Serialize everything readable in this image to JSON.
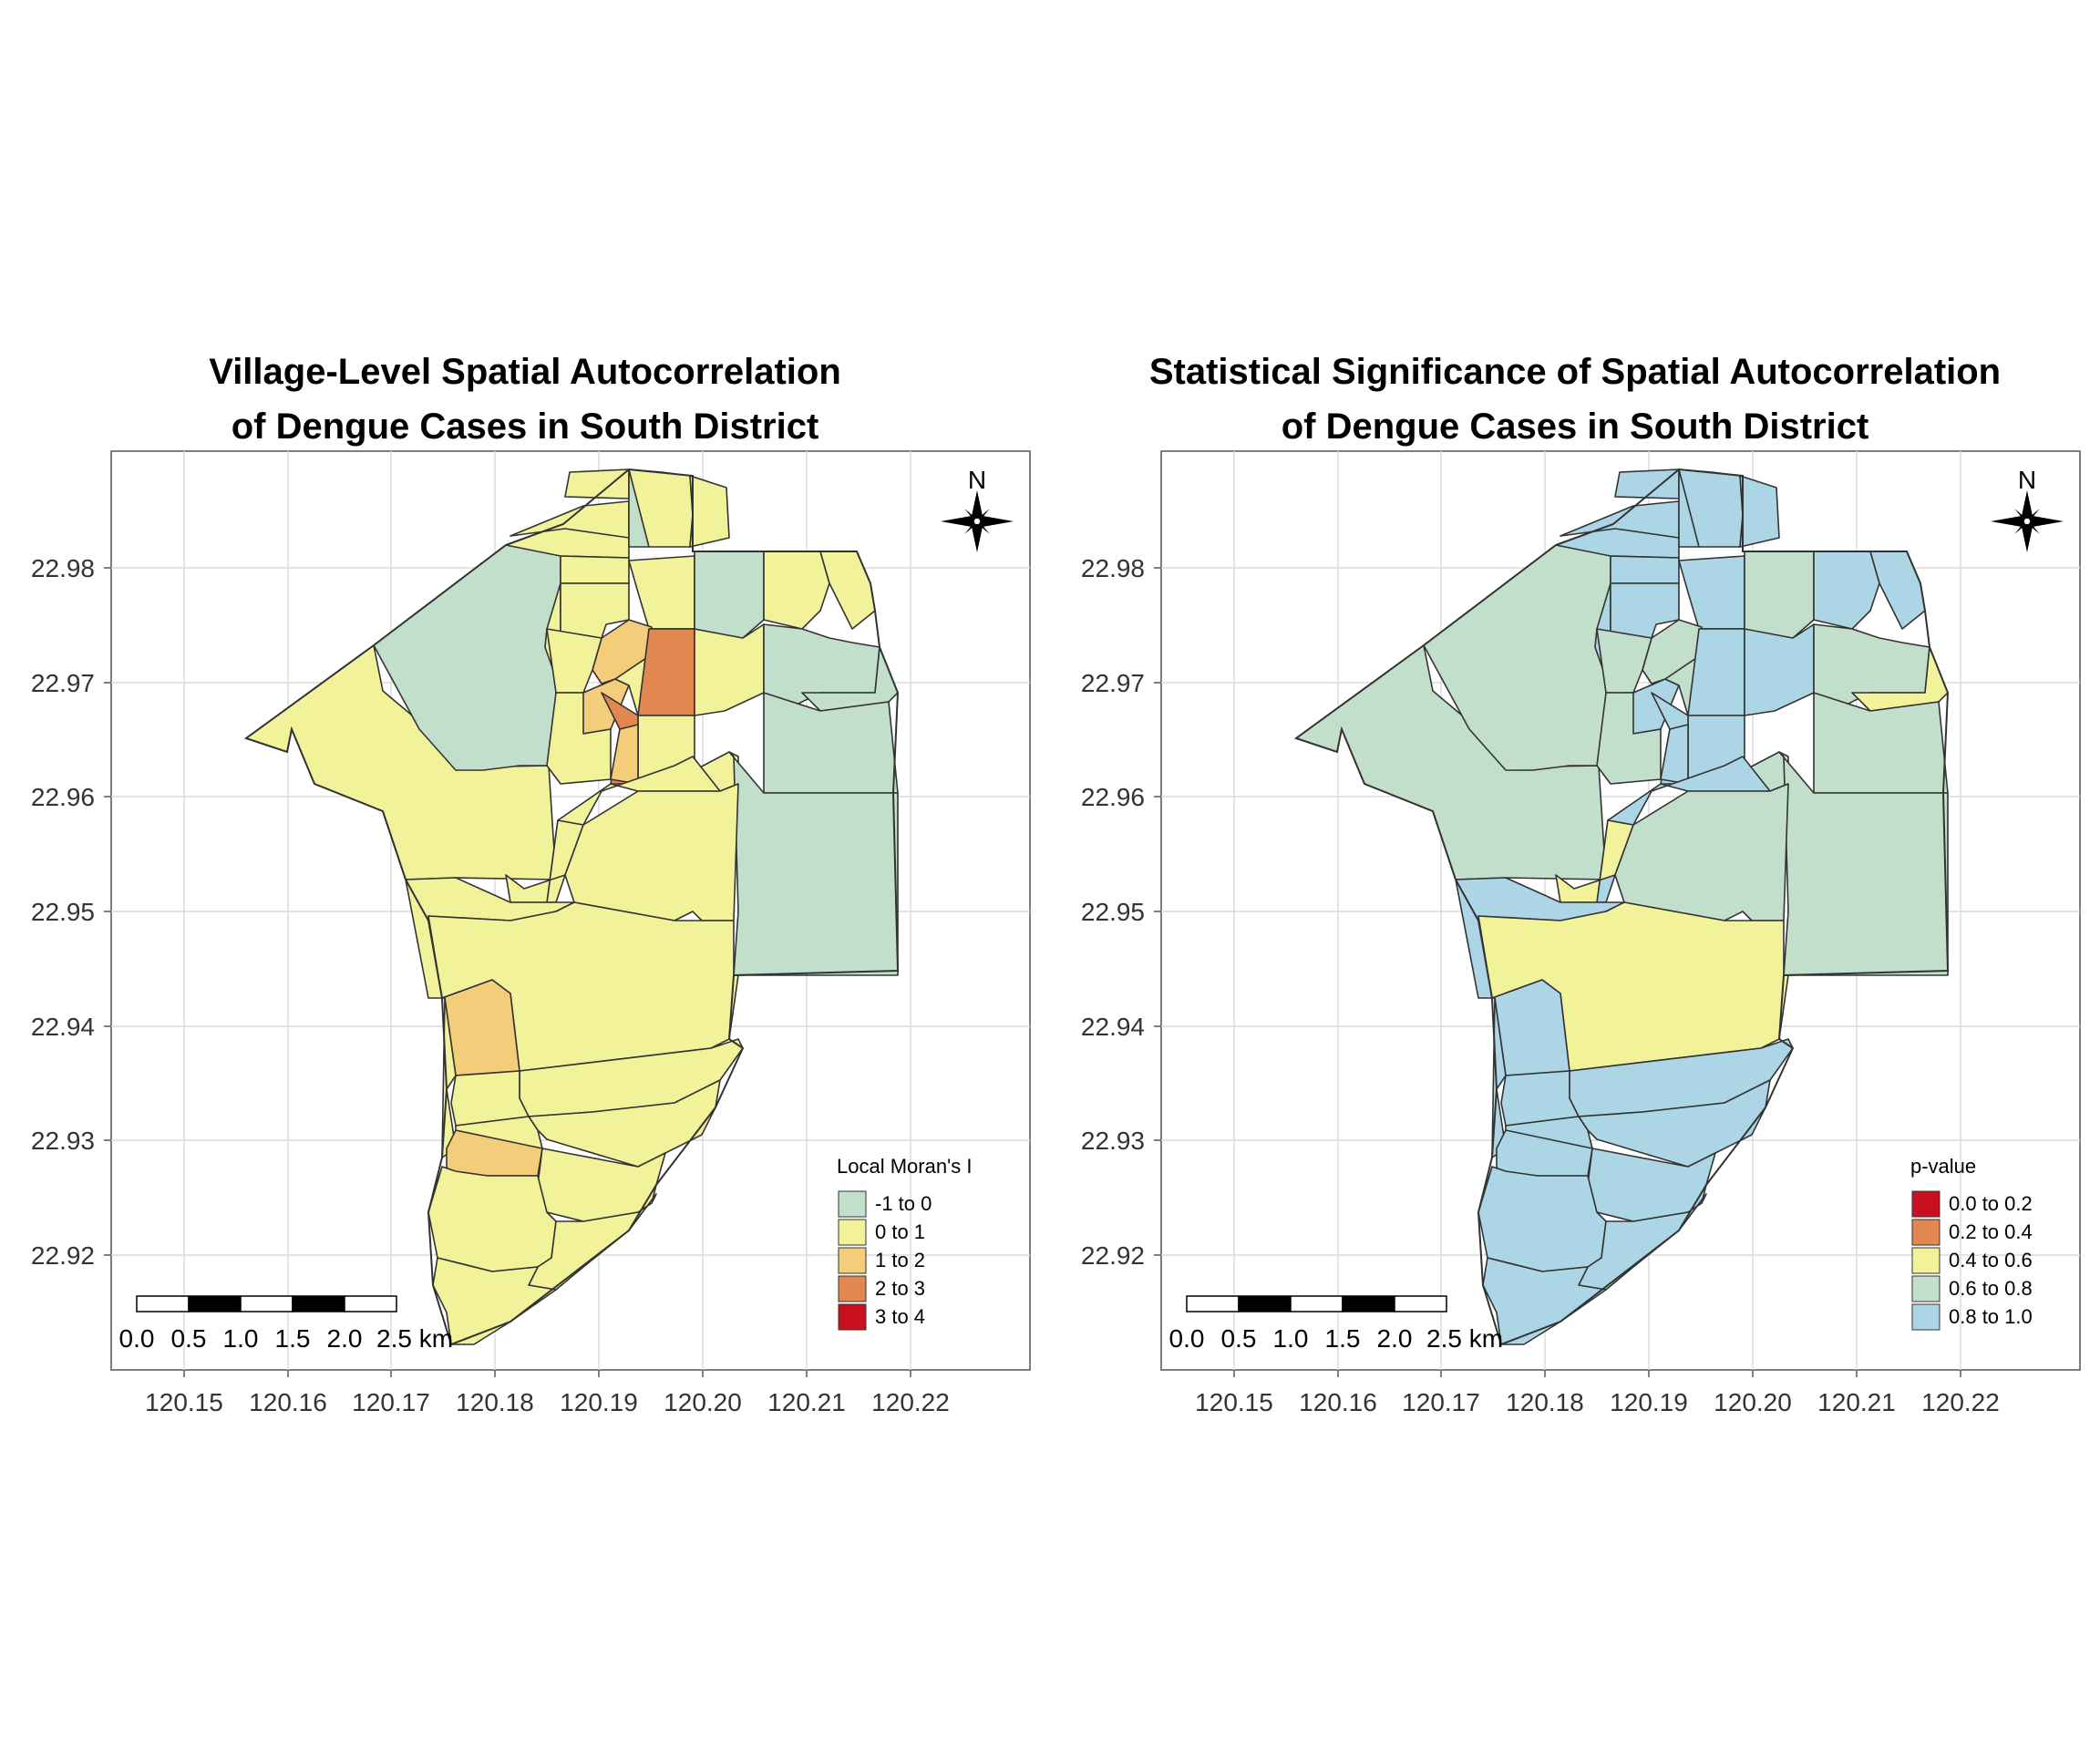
{
  "maps": [
    {
      "title_line1": "Village-Level Spatial Autocorrelation",
      "title_line2": "of Dengue Cases in South District",
      "legend_title": "Local Moran's I",
      "legend_items": [
        {
          "label": "-1 to 0",
          "color": "#c2dfcb"
        },
        {
          "label": "0 to 1",
          "color": "#f2f29b"
        },
        {
          "label": "1 to 2",
          "color": "#f3cd79"
        },
        {
          "label": "2 to 3",
          "color": "#e2874f"
        },
        {
          "label": "3 to 4",
          "color": "#c9101e"
        }
      ],
      "north_label": "N",
      "scalebar_labels": [
        "0.0",
        "0.5",
        "1.0",
        "1.5",
        "2.0",
        "2.5 km"
      ]
    },
    {
      "title_line1": "Statistical Significance of Spatial Autocorrelation",
      "title_line2": "of Dengue Cases in South District",
      "legend_title": "p-value",
      "legend_items": [
        {
          "label": "0.0 to 0.2",
          "color": "#c9101e"
        },
        {
          "label": "0.2 to 0.4",
          "color": "#e2874f"
        },
        {
          "label": "0.4 to 0.6",
          "color": "#f2f29b"
        },
        {
          "label": "0.6 to 0.8",
          "color": "#c2dfcb"
        },
        {
          "label": "0.8 to 1.0",
          "color": "#acd6e5"
        }
      ],
      "north_label": "N",
      "scalebar_labels": [
        "0.0",
        "0.5",
        "1.0",
        "1.5",
        "2.0",
        "2.5 km"
      ]
    }
  ],
  "x_ticks": [
    "120.15",
    "120.16",
    "120.17",
    "120.18",
    "120.19",
    "120.20",
    "120.21",
    "120.22"
  ],
  "y_ticks": [
    "22.98",
    "22.97",
    "22.96",
    "22.95",
    "22.94",
    "22.93",
    "22.92"
  ],
  "colors": {
    "border": "#333333",
    "grid": "#dcdcdc",
    "frame": "#555555"
  }
}
